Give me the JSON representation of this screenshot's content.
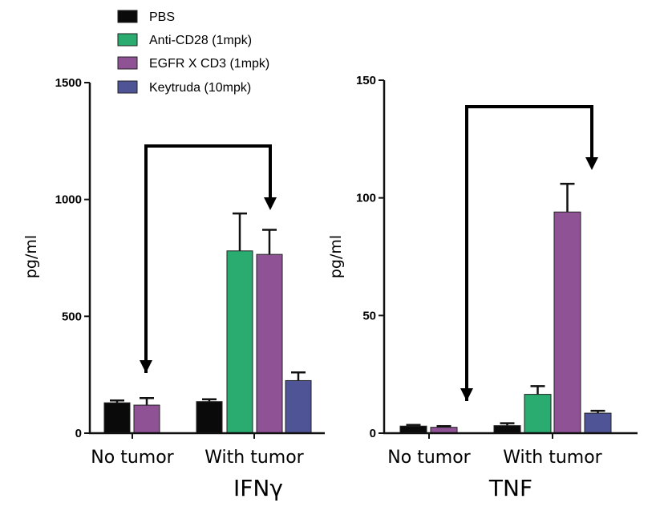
{
  "legend": [
    {
      "label": "PBS",
      "color": "#0a0a0a"
    },
    {
      "label": "Anti-CD28 (1mpk)",
      "color": "#2aab6f"
    },
    {
      "label": "EGFR X CD3 (1mpk)",
      "color": "#8e5295"
    },
    {
      "label": "Keytruda (10mpk)",
      "color": "#4e5496"
    }
  ],
  "chart_data": [
    {
      "type": "bar",
      "title": "IFNγ",
      "ylabel": "pg/ml",
      "ylim": [
        0,
        1500
      ],
      "yticks": [
        "0",
        "500",
        "1000",
        "1500"
      ],
      "categories": [
        "No tumor",
        "With tumor"
      ],
      "series": [
        {
          "name": "PBS",
          "values": [
            130,
            135
          ],
          "errors": [
            10,
            10
          ]
        },
        {
          "name": "Anti-CD28 (1mpk)",
          "values": [
            null,
            780
          ],
          "errors": [
            null,
            160
          ]
        },
        {
          "name": "EGFR X CD3 (1mpk)",
          "values": [
            120,
            765
          ],
          "errors": [
            30,
            105
          ]
        },
        {
          "name": "Keytruda (10mpk)",
          "values": [
            null,
            225
          ],
          "errors": [
            null,
            35
          ]
        }
      ]
    },
    {
      "type": "bar",
      "title": "TNF",
      "ylabel": "pg/ml",
      "ylim": [
        0,
        150
      ],
      "yticks": [
        "0",
        "50",
        "100",
        "150"
      ],
      "categories": [
        "No tumor",
        "With tumor"
      ],
      "series": [
        {
          "name": "PBS",
          "values": [
            3,
            3.2
          ],
          "errors": [
            0.5,
            1
          ]
        },
        {
          "name": "Anti-CD28 (1mpk)",
          "values": [
            null,
            16.5
          ],
          "errors": [
            null,
            3.5
          ]
        },
        {
          "name": "EGFR X CD3 (1mpk)",
          "values": [
            2.5,
            94
          ],
          "errors": [
            0.5,
            12
          ]
        },
        {
          "name": "Keytruda (10mpk)",
          "values": [
            null,
            8.5
          ],
          "errors": [
            null,
            1
          ]
        }
      ]
    }
  ]
}
